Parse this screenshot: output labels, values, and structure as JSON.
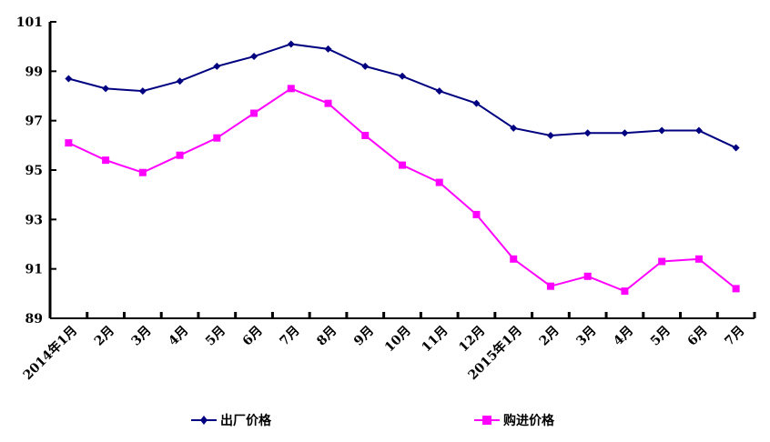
{
  "chart_data": {
    "type": "line",
    "title": "",
    "xlabel": "",
    "ylabel": "",
    "ylim": [
      89,
      101
    ],
    "yticks": [
      "89",
      "91",
      "93",
      "95",
      "97",
      "99",
      "101"
    ],
    "categories": [
      "2014年1月",
      "2月",
      "3月",
      "4月",
      "5月",
      "6月",
      "7月",
      "8月",
      "9月",
      "10月",
      "11月",
      "12月",
      "2015年1月",
      "2月",
      "3月",
      "4月",
      "5月",
      "6月",
      "7月"
    ],
    "grid": false,
    "legend_position": "bottom",
    "series": [
      {
        "name": "出厂价格",
        "color": "#000080",
        "marker": "diamond",
        "values": [
          98.7,
          98.3,
          98.2,
          98.6,
          99.2,
          99.6,
          100.1,
          99.9,
          99.2,
          98.8,
          98.2,
          97.7,
          96.7,
          96.4,
          96.5,
          96.5,
          96.6,
          96.6,
          95.9
        ]
      },
      {
        "name": "购进价格",
        "color": "#FF00FF",
        "marker": "square",
        "values": [
          96.1,
          95.4,
          94.9,
          95.6,
          96.3,
          97.3,
          98.3,
          97.7,
          96.4,
          95.2,
          94.5,
          93.2,
          91.4,
          90.3,
          90.7,
          90.1,
          91.3,
          91.4,
          90.2
        ]
      }
    ]
  }
}
